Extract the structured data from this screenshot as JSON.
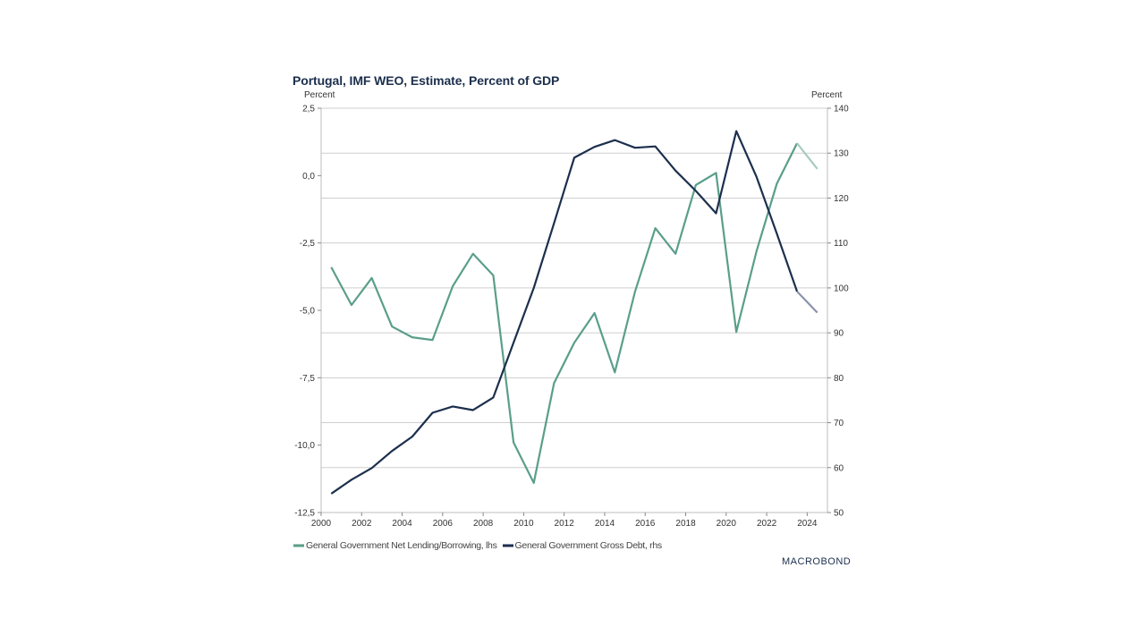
{
  "chart_data": {
    "type": "line",
    "title": "Portugal, IMF WEO, Estimate, Percent of GDP",
    "ylabel_left": "Percent",
    "ylabel_right": "Percent",
    "xlabel": "",
    "x": [
      2000,
      2001,
      2002,
      2003,
      2004,
      2005,
      2006,
      2007,
      2008,
      2009,
      2010,
      2011,
      2012,
      2013,
      2014,
      2015,
      2016,
      2017,
      2018,
      2019,
      2020,
      2021,
      2022,
      2023,
      2024
    ],
    "xlim": [
      2000,
      2025
    ],
    "x_ticks": [
      "2000",
      "2002",
      "2004",
      "2006",
      "2008",
      "2010",
      "2012",
      "2014",
      "2016",
      "2018",
      "2020",
      "2022",
      "2024"
    ],
    "ylim_left": [
      -12.5,
      2.5
    ],
    "y_ticks_left": [
      "2,5",
      "0,0",
      "-2,5",
      "-5,0",
      "-7,5",
      "-10,0",
      "-12,5"
    ],
    "y_ticks_left_values": [
      2.5,
      0,
      -2.5,
      -5,
      -7.5,
      -10,
      -12.5
    ],
    "ylim_right": [
      50,
      140
    ],
    "y_ticks_right": [
      "140",
      "130",
      "120",
      "110",
      "100",
      "90",
      "80",
      "70",
      "60",
      "50"
    ],
    "y_ticks_right_values": [
      140,
      130,
      120,
      110,
      100,
      90,
      80,
      70,
      60,
      50
    ],
    "grid": true,
    "legend_position": "bottom-left",
    "series": [
      {
        "name": "General Government Net Lending/Borrowing, lhs",
        "axis": "left",
        "color": "#5a9e8b",
        "forecast_color": "#a7cbbd",
        "forecast_from_index": 23,
        "values": [
          -3.4,
          -4.8,
          -3.8,
          -5.6,
          -6.0,
          -6.1,
          -4.1,
          -2.9,
          -3.7,
          -9.9,
          -11.4,
          -7.7,
          -6.2,
          -5.1,
          -7.3,
          -4.3,
          -1.95,
          -2.9,
          -0.35,
          0.1,
          -5.8,
          -2.8,
          -0.3,
          1.2,
          0.25
        ]
      },
      {
        "name": "General Government Gross Debt, rhs",
        "axis": "right",
        "color": "#1c2f4d",
        "forecast_color": "#8a93aa",
        "forecast_from_index": 23,
        "values": [
          54.2,
          57.3,
          59.9,
          63.7,
          66.9,
          72.2,
          73.6,
          72.8,
          75.6,
          87.8,
          100.0,
          114.4,
          129.0,
          131.4,
          132.9,
          131.2,
          131.5,
          126.1,
          121.6,
          116.6,
          134.9,
          124.7,
          112.1,
          99.2,
          94.5
        ]
      }
    ]
  },
  "branding": {
    "logo_text": "MACROBOND"
  }
}
